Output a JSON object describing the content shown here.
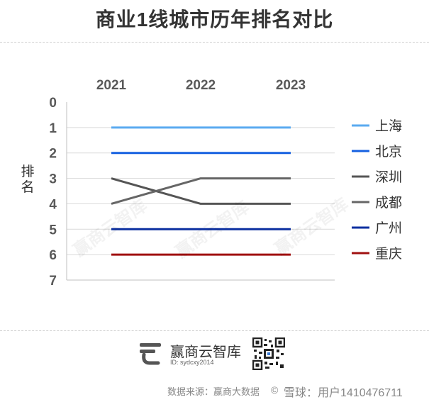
{
  "title": "商业1线城市历年排名对比",
  "chart_data": {
    "type": "line",
    "x": [
      "2021",
      "2022",
      "2023"
    ],
    "ylabel": "排名",
    "ylim": [
      0,
      7
    ],
    "y_ticks": [
      "0",
      "1",
      "2",
      "3",
      "4",
      "5",
      "6",
      "7"
    ],
    "y_inverted": true,
    "x_axis_position": "top",
    "grid": true,
    "legend_position": "right",
    "series": [
      {
        "name": "上海",
        "values": [
          1,
          1,
          1
        ],
        "color": "#5aaaf0"
      },
      {
        "name": "北京",
        "values": [
          2,
          2,
          2
        ],
        "color": "#1560e0"
      },
      {
        "name": "深圳",
        "values": [
          3,
          4,
          4
        ],
        "color": "#555555"
      },
      {
        "name": "成都",
        "values": [
          4,
          3,
          3
        ],
        "color": "#666666"
      },
      {
        "name": "广州",
        "values": [
          5,
          5,
          5
        ],
        "color": "#0b2fa0"
      },
      {
        "name": "重庆",
        "values": [
          6,
          6,
          6
        ],
        "color": "#a01010"
      }
    ]
  },
  "watermark": "赢商云智库",
  "footer": {
    "brand_name": "赢商云智库",
    "brand_id": "ID: sydcxy2014",
    "source": "数据来源：赢商大数据",
    "platform_icon": "©",
    "platform": "雪球：用户1410476711"
  },
  "colors": {
    "accent": "#1560e0",
    "grid": "#d9d9d9",
    "axis_text": "#595959"
  },
  "icons": {
    "logo": "brand-logo-icon",
    "qr": "qr-code-icon"
  }
}
